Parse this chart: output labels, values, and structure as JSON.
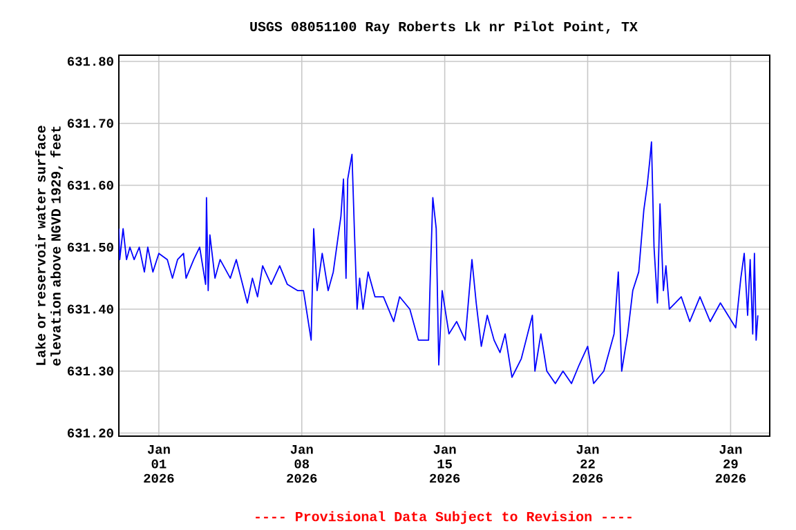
{
  "chart_data": {
    "type": "line",
    "title": "USGS 08051100 Ray Roberts Lk nr Pilot Point, TX",
    "ylabel": "Lake or reservoir water surface elevation above NGVD 1929, feet",
    "annotations": [
      "---- Provisional Data Subject to Revision ----"
    ],
    "grid": true,
    "marker": "none",
    "line_style": "solid",
    "xlim": [
      "2025-12-30T01:00",
      "2026-01-30T22:00"
    ],
    "ylim": [
      631.195,
      631.81
    ],
    "xticks": [
      {
        "value": "2026-01-01",
        "label": "Jan 01 2026"
      },
      {
        "value": "2026-01-08",
        "label": "Jan 08 2026"
      },
      {
        "value": "2026-01-15",
        "label": "Jan 15 2026"
      },
      {
        "value": "2026-01-22",
        "label": "Jan 22 2026"
      },
      {
        "value": "2026-01-29",
        "label": "Jan 29 2026"
      }
    ],
    "yticks": [
      {
        "value": 631.2,
        "label": "631.20"
      },
      {
        "value": 631.3,
        "label": "631.30"
      },
      {
        "value": 631.4,
        "label": "631.40"
      },
      {
        "value": 631.5,
        "label": "631.50"
      },
      {
        "value": 631.6,
        "label": "631.60"
      },
      {
        "value": 631.7,
        "label": "631.70"
      },
      {
        "value": 631.8,
        "label": "631.80"
      }
    ],
    "series": [
      {
        "color": "#0000ff",
        "x": [
          "2025-12-30T01:00",
          "2025-12-30T02:00",
          "2025-12-30T06:00",
          "2025-12-30T10:00",
          "2025-12-30T14:00",
          "2025-12-30T19:00",
          "2025-12-31T01:00",
          "2025-12-31T07:00",
          "2025-12-31T11:00",
          "2025-12-31T17:00",
          "2026-01-01T00:00",
          "2026-01-01T10:00",
          "2026-01-01T16:00",
          "2026-01-01T22:00",
          "2026-01-02T05:00",
          "2026-01-02T08:00",
          "2026-01-02T17:00",
          "2026-01-03T00:00",
          "2026-01-03T07:00",
          "2026-01-03T08:00",
          "2026-01-03T10:00",
          "2026-01-03T12:00",
          "2026-01-03T18:00",
          "2026-01-04T00:00",
          "2026-01-04T12:00",
          "2026-01-04T19:00",
          "2026-01-05T08:00",
          "2026-01-05T14:00",
          "2026-01-05T20:00",
          "2026-01-06T02:00",
          "2026-01-06T12:00",
          "2026-01-06T22:00",
          "2026-01-07T07:00",
          "2026-01-07T19:00",
          "2026-01-08T02:00",
          "2026-01-08T11:00",
          "2026-01-08T14:00",
          "2026-01-08T18:00",
          "2026-01-09T00:00",
          "2026-01-09T07:00",
          "2026-01-09T13:00",
          "2026-01-09T22:00",
          "2026-01-10T01:00",
          "2026-01-10T04:00",
          "2026-01-10T06:00",
          "2026-01-10T11:00",
          "2026-01-10T14:00",
          "2026-01-10T17:00",
          "2026-01-10T20:00",
          "2026-01-11T00:00",
          "2026-01-11T06:00",
          "2026-01-11T14:00",
          "2026-01-12T00:00",
          "2026-01-12T12:00",
          "2026-01-12T19:00",
          "2026-01-13T07:00",
          "2026-01-13T17:00",
          "2026-01-14T05:00",
          "2026-01-14T07:00",
          "2026-01-14T10:00",
          "2026-01-14T14:00",
          "2026-01-14T17:00",
          "2026-01-14T21:00",
          "2026-01-15T05:00",
          "2026-01-15T14:00",
          "2026-01-16T00:00",
          "2026-01-16T08:00",
          "2026-01-16T13:00",
          "2026-01-16T19:00",
          "2026-01-17T02:00",
          "2026-01-17T10:00",
          "2026-01-17T17:00",
          "2026-01-17T23:00",
          "2026-01-18T07:00",
          "2026-01-18T18:00",
          "2026-01-19T07:00",
          "2026-01-19T10:00",
          "2026-01-19T17:00",
          "2026-01-20T00:00",
          "2026-01-20T10:00",
          "2026-01-20T19:00",
          "2026-01-21T05:00",
          "2026-01-21T14:00",
          "2026-01-22T00:00",
          "2026-01-22T07:00",
          "2026-01-22T19:00",
          "2026-01-23T07:00",
          "2026-01-23T12:00",
          "2026-01-23T16:00",
          "2026-01-23T23:00",
          "2026-01-24T05:00",
          "2026-01-24T12:00",
          "2026-01-24T18:00",
          "2026-01-24T22:00",
          "2026-01-25T01:00",
          "2026-01-25T03:00",
          "2026-01-25T06:00",
          "2026-01-25T10:00",
          "2026-01-25T13:00",
          "2026-01-25T17:00",
          "2026-01-25T20:00",
          "2026-01-26T00:00",
          "2026-01-26T14:00",
          "2026-01-27T00:00",
          "2026-01-27T12:00",
          "2026-01-28T00:00",
          "2026-01-28T12:00",
          "2026-01-29T06:00",
          "2026-01-29T12:00",
          "2026-01-29T16:00",
          "2026-01-29T20:00",
          "2026-01-29T23:00",
          "2026-01-30T02:00",
          "2026-01-30T04:00",
          "2026-01-30T06:00",
          "2026-01-30T08:00"
        ],
        "values": [
          631.53,
          631.48,
          631.53,
          631.48,
          631.5,
          631.48,
          631.5,
          631.46,
          631.5,
          631.46,
          631.49,
          631.48,
          631.45,
          631.48,
          631.49,
          631.45,
          631.48,
          631.5,
          631.44,
          631.58,
          631.43,
          631.52,
          631.45,
          631.48,
          631.45,
          631.48,
          631.41,
          631.45,
          631.42,
          631.47,
          631.44,
          631.47,
          631.44,
          631.43,
          631.43,
          631.35,
          631.53,
          631.43,
          631.49,
          631.43,
          631.46,
          631.55,
          631.61,
          631.45,
          631.61,
          631.65,
          631.52,
          631.4,
          631.45,
          631.4,
          631.46,
          631.42,
          631.42,
          631.38,
          631.42,
          631.4,
          631.35,
          631.35,
          631.45,
          631.58,
          631.53,
          631.31,
          631.43,
          631.36,
          631.38,
          631.35,
          631.48,
          631.41,
          631.34,
          631.39,
          631.35,
          631.33,
          631.36,
          631.29,
          631.32,
          631.39,
          631.3,
          631.36,
          631.3,
          631.28,
          631.3,
          631.28,
          631.31,
          631.34,
          631.28,
          631.3,
          631.36,
          631.46,
          631.3,
          631.36,
          631.43,
          631.46,
          631.56,
          631.6,
          631.64,
          631.67,
          631.5,
          631.41,
          631.57,
          631.43,
          631.47,
          631.4,
          631.42,
          631.38,
          631.42,
          631.38,
          631.41,
          631.37,
          631.45,
          631.49,
          631.39,
          631.48,
          631.36,
          631.49,
          631.35,
          631.39
        ]
      }
    ]
  }
}
